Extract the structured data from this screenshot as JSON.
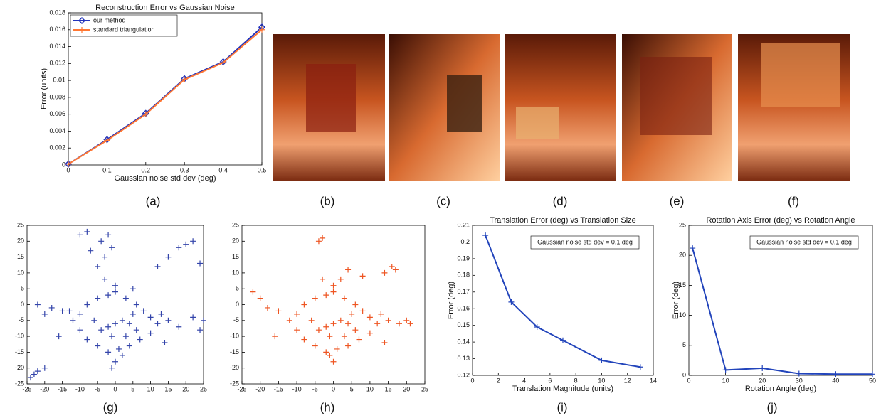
{
  "chart_data": [
    {
      "type": "line",
      "title": "Reconstruction Error vs Gaussian Noise",
      "xlabel": "Gaussian noise std dev (deg)",
      "ylabel": "Error (units)",
      "caption": "(a)",
      "x": [
        0,
        0.1,
        0.2,
        0.3,
        0.4,
        0.5
      ],
      "series": [
        {
          "name": "our method",
          "color": "#2233bb",
          "marker": "diamond",
          "values": [
            0.0001,
            0.003,
            0.0061,
            0.0102,
            0.0122,
            0.0163
          ]
        },
        {
          "name": "standard triangulation",
          "color": "#ff7733",
          "marker": "plus",
          "values": [
            0.0001,
            0.0029,
            0.006,
            0.0101,
            0.0121,
            0.016
          ]
        }
      ],
      "xlim": [
        0,
        0.5
      ],
      "xticks": [
        0,
        0.1,
        0.2,
        0.3,
        0.4,
        0.5
      ],
      "ylim": [
        0,
        0.018
      ],
      "yticks": [
        0,
        0.002,
        0.004,
        0.006,
        0.008,
        0.01,
        0.012,
        0.014,
        0.016,
        0.018
      ],
      "legend": "upper left"
    },
    {
      "type": "scatter",
      "caption": "(g)",
      "color": "#3344aa",
      "x": [
        -10,
        -8,
        -5,
        -2,
        0,
        3,
        6,
        8,
        10,
        12,
        10,
        7,
        4,
        1,
        -2,
        -5,
        -8,
        -10,
        -12,
        -13,
        -4,
        -2,
        0,
        2,
        4,
        6,
        3,
        -1,
        5,
        -6,
        -15,
        -18,
        -20,
        -22,
        15,
        18,
        22,
        24,
        14,
        13,
        -16,
        0,
        -1,
        2,
        -3,
        0,
        5,
        -10,
        -8,
        -7,
        -5,
        -4,
        -3,
        -2,
        -1,
        12,
        15,
        18,
        20,
        22,
        24,
        25,
        -22,
        -24,
        -20,
        -23
      ],
      "values": [
        -3,
        0,
        2,
        3,
        4,
        2,
        0,
        -2,
        -4,
        -6,
        -9,
        -11,
        -13,
        -14,
        -15,
        -13,
        -11,
        -8,
        -5,
        -2,
        -8,
        -7,
        -6,
        -5,
        -6,
        -8,
        -10,
        -10,
        -3,
        -5,
        -2,
        -1,
        -3,
        0,
        -5,
        -7,
        -4,
        -8,
        -12,
        -3,
        -10,
        -18,
        -20,
        -16,
        8,
        6,
        5,
        22,
        23,
        17,
        12,
        20,
        15,
        22,
        18,
        12,
        15,
        18,
        19,
        20,
        13,
        -5,
        -21,
        -23,
        -20,
        -22
      ],
      "xlim": [
        -25,
        25
      ],
      "xticks": [
        -25,
        -20,
        -15,
        -10,
        -5,
        0,
        5,
        10,
        15,
        20,
        25
      ],
      "ylim": [
        -25,
        25
      ],
      "yticks": [
        -25,
        -20,
        -15,
        -10,
        -5,
        0,
        5,
        10,
        15,
        20,
        25
      ]
    },
    {
      "type": "scatter",
      "caption": "(h)",
      "color": "#ee5522",
      "x": [
        -10,
        -8,
        -5,
        -2,
        0,
        3,
        6,
        8,
        10,
        12,
        10,
        7,
        4,
        1,
        -2,
        -5,
        -8,
        -10,
        -12,
        -4,
        -2,
        0,
        2,
        4,
        6,
        3,
        -1,
        5,
        -6,
        -15,
        -18,
        15,
        18,
        14,
        13,
        -16,
        0,
        -1,
        -3,
        0,
        -4,
        -3,
        2,
        4,
        8,
        14,
        16,
        17,
        -22,
        -20,
        20,
        21
      ],
      "values": [
        -3,
        0,
        2,
        3,
        4,
        2,
        0,
        -2,
        -4,
        -6,
        -9,
        -11,
        -13,
        -14,
        -15,
        -13,
        -11,
        -8,
        -5,
        -8,
        -7,
        -6,
        -5,
        -6,
        -8,
        -10,
        -10,
        -3,
        -5,
        -2,
        -1,
        -5,
        -6,
        -12,
        -3,
        -10,
        -18,
        -16,
        8,
        6,
        20,
        21,
        8,
        11,
        9,
        10,
        12,
        11,
        4,
        2,
        -5,
        -6
      ],
      "xlim": [
        -25,
        25
      ],
      "xticks": [
        -25,
        -20,
        -15,
        -10,
        -5,
        0,
        5,
        10,
        15,
        20,
        25
      ],
      "ylim": [
        -25,
        25
      ],
      "yticks": [
        -25,
        -20,
        -15,
        -10,
        -5,
        0,
        5,
        10,
        15,
        20,
        25
      ]
    },
    {
      "type": "line",
      "title": "Translation Error (deg) vs Translation Size",
      "xlabel": "Translation Magnitude (units)",
      "ylabel": "Error (deg)",
      "caption": "(i)",
      "annotation": "Gaussian noise std dev = 0.1 deg",
      "x": [
        1,
        3,
        5,
        7,
        10,
        13
      ],
      "series": [
        {
          "color": "#2244bb",
          "marker": "plus",
          "values": [
            0.204,
            0.164,
            0.149,
            0.141,
            0.129,
            0.125
          ]
        }
      ],
      "xlim": [
        0,
        14
      ],
      "xticks": [
        0,
        2,
        4,
        6,
        8,
        10,
        12,
        14
      ],
      "ylim": [
        0.12,
        0.21
      ],
      "yticks": [
        0.12,
        0.13,
        0.14,
        0.15,
        0.16,
        0.17,
        0.18,
        0.19,
        0.2,
        0.21
      ]
    },
    {
      "type": "line",
      "title": "Rotation Axis Error (deg) vs Rotation Angle",
      "xlabel": "Rotation Angle (deg)",
      "ylabel": "Error (deg)",
      "caption": "(j)",
      "annotation": "Gaussian noise std dev = 0.1 deg",
      "x": [
        1,
        10,
        20,
        30,
        40,
        50
      ],
      "series": [
        {
          "color": "#2244bb",
          "marker": "plus",
          "values": [
            21.2,
            0.9,
            1.2,
            0.3,
            0.2,
            0.2
          ]
        }
      ],
      "xlim": [
        0,
        50
      ],
      "xticks": [
        0,
        10,
        20,
        30,
        40,
        50
      ],
      "ylim": [
        0,
        25
      ],
      "yticks": [
        0,
        5,
        10,
        15,
        20,
        25
      ]
    }
  ],
  "photos": [
    {
      "caption": "(b)"
    },
    {
      "caption": "(c)"
    },
    {
      "caption": "(d)"
    },
    {
      "caption": "(e)"
    },
    {
      "caption": "(f)"
    }
  ]
}
